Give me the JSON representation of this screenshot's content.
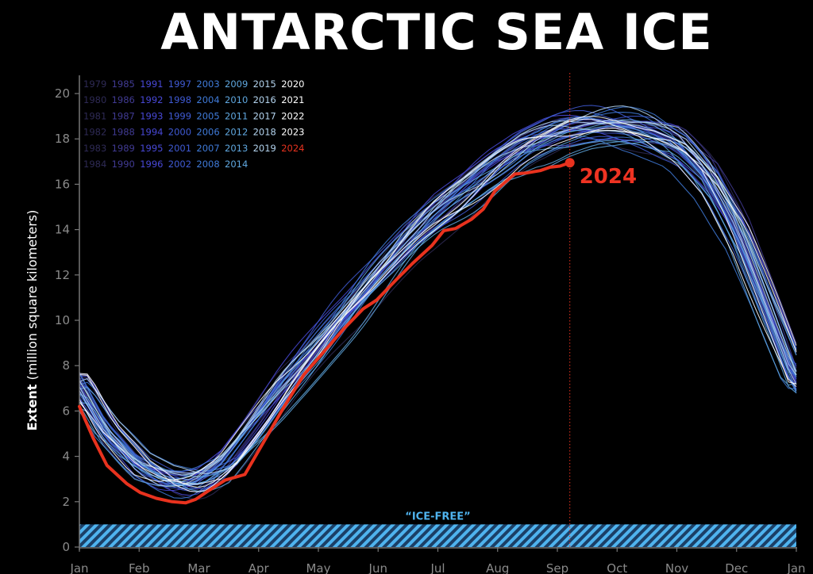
{
  "chart_data": {
    "type": "line",
    "title": "ANTARCTIC SEA ICE",
    "ylabel_bold": "Extent",
    "ylabel_rest": " (million square kilometers)",
    "xlabel": "",
    "ylim": [
      0,
      21
    ],
    "yticks": [
      0,
      2,
      4,
      6,
      8,
      10,
      12,
      14,
      16,
      18,
      20
    ],
    "months": [
      "Jan",
      "Feb",
      "Mar",
      "Apr",
      "May",
      "Jun",
      "Jul",
      "Aug",
      "Sep",
      "Oct",
      "Nov",
      "Dec",
      "Jan"
    ],
    "grid": false,
    "legend_position": "top-left",
    "x_units": "day of year",
    "climatology": {
      "days": [
        1,
        15,
        32,
        45,
        55,
        62,
        75,
        91,
        105,
        121,
        135,
        152,
        170,
        182,
        200,
        213,
        227,
        244,
        258,
        265,
        274,
        288,
        305,
        320,
        335,
        350,
        365
      ],
      "median": [
        7.0,
        5.0,
        3.5,
        2.95,
        2.8,
        2.9,
        3.6,
        5.3,
        6.9,
        8.5,
        10.0,
        11.8,
        13.6,
        14.6,
        15.8,
        16.7,
        17.5,
        18.1,
        18.35,
        18.4,
        18.4,
        18.2,
        17.6,
        16.2,
        13.8,
        10.5,
        7.2
      ]
    },
    "series_2024": {
      "name": "2024",
      "days": [
        1,
        8,
        15,
        25,
        32,
        40,
        48,
        55,
        60,
        66,
        75,
        85,
        95,
        105,
        115,
        125,
        135,
        145,
        152,
        162,
        170,
        180,
        186,
        192,
        200,
        206,
        212,
        218,
        222,
        228,
        235,
        240,
        245,
        250
      ],
      "values": [
        6.2,
        4.8,
        3.6,
        2.8,
        2.4,
        2.15,
        2.0,
        1.95,
        2.1,
        2.45,
        2.95,
        3.2,
        4.7,
        6.2,
        7.6,
        8.6,
        9.6,
        10.5,
        10.9,
        11.8,
        12.5,
        13.3,
        13.95,
        14.05,
        14.45,
        14.9,
        15.7,
        16.15,
        16.45,
        16.5,
        16.6,
        16.75,
        16.8,
        16.95
      ],
      "color": "#e8321e",
      "label": "2024"
    },
    "legend": {
      "columns": [
        [
          "1979",
          "1980",
          "1981",
          "1982",
          "1983",
          "1984"
        ],
        [
          "1985",
          "1986",
          "1987",
          "1988",
          "1989",
          "1990"
        ],
        [
          "1991",
          "1992",
          "1993",
          "1994",
          "1995",
          "1996"
        ],
        [
          "1997",
          "1998",
          "1999",
          "2000",
          "2001",
          "2002"
        ],
        [
          "2003",
          "2004",
          "2005",
          "2006",
          "2007",
          "2008"
        ],
        [
          "2009",
          "2010",
          "2011",
          "2012",
          "2013",
          "2014"
        ],
        [
          "2015",
          "2016",
          "2017",
          "2018",
          "2019"
        ],
        [
          "2020",
          "2021",
          "2022",
          "2023",
          "2024"
        ]
      ],
      "column_colors": [
        "#2e2a55",
        "#403a92",
        "#4848d6",
        "#3f5ad4",
        "#3f7ad8",
        "#5fa7df",
        "#b3d3ee",
        "#ffffff"
      ],
      "highlight_year": "2024",
      "highlight_color": "#e8321e"
    },
    "ice_free": {
      "label": "“ICE-FREE”",
      "threshold": 1.0,
      "color": "#4fb3ee"
    },
    "current_day_marker": 250,
    "current_marker_color": "#e8321e"
  }
}
